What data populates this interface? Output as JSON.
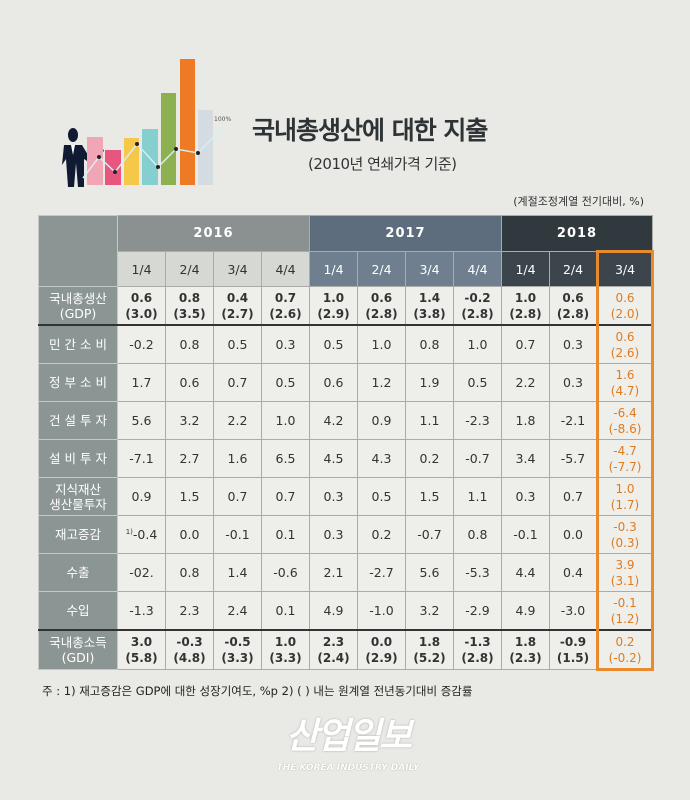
{
  "header": {
    "title": "국내총생산에 대한 지출",
    "subtitle": "(2010년 연쇄가격 기준)",
    "unit": "(계절조정계열 전기대비, %)",
    "illustration_label": "100%"
  },
  "table": {
    "years": [
      {
        "label": "2016",
        "span": 4,
        "bg": "#8b9191",
        "qbg": "#d6d8d4",
        "qcolor": "#333"
      },
      {
        "label": "2017",
        "span": 4,
        "bg": "#5d6d7d",
        "qbg": "#6f7f8f",
        "qcolor": "#fff"
      },
      {
        "label": "2018",
        "span": 3,
        "bg": "#2f393e",
        "qbg": "#3b454b",
        "qcolor": "#fff"
      }
    ],
    "quarters": [
      "1/4",
      "2/4",
      "3/4",
      "4/4",
      "1/4",
      "2/4",
      "3/4",
      "4/4",
      "1/4",
      "2/4",
      "3/4"
    ],
    "rows": [
      {
        "label": [
          "국내총생산",
          "(GDP)"
        ],
        "bold": true,
        "values": [
          [
            "0.6",
            "(3.0)"
          ],
          [
            "0.8",
            "(3.5)"
          ],
          [
            "0.4",
            "(2.7)"
          ],
          [
            "0.7",
            "(2.6)"
          ],
          [
            "1.0",
            "(2.9)"
          ],
          [
            "0.6",
            "(2.8)"
          ],
          [
            "1.4",
            "(3.8)"
          ],
          [
            "-0.2",
            "(2.8)"
          ],
          [
            "1.0",
            "(2.8)"
          ],
          [
            "0.6",
            "(2.8)"
          ],
          [
            "0.6",
            "(2.0)"
          ]
        ]
      },
      {
        "label": [
          "민 간 소 비"
        ],
        "values": [
          [
            "-0.2"
          ],
          [
            "0.8"
          ],
          [
            "0.5"
          ],
          [
            "0.3"
          ],
          [
            "0.5"
          ],
          [
            "1.0"
          ],
          [
            "0.8"
          ],
          [
            "1.0"
          ],
          [
            "0.7"
          ],
          [
            "0.3"
          ],
          [
            "0.6",
            "(2.6)"
          ]
        ]
      },
      {
        "label": [
          "정 부 소 비"
        ],
        "values": [
          [
            "1.7"
          ],
          [
            "0.6"
          ],
          [
            "0.7"
          ],
          [
            "0.5"
          ],
          [
            "0.6"
          ],
          [
            "1.2"
          ],
          [
            "1.9"
          ],
          [
            "0.5"
          ],
          [
            "2.2"
          ],
          [
            "0.3"
          ],
          [
            "1.6",
            "(4.7)"
          ]
        ]
      },
      {
        "label": [
          "건 설 투 자"
        ],
        "values": [
          [
            "5.6"
          ],
          [
            "3.2"
          ],
          [
            "2.2"
          ],
          [
            "1.0"
          ],
          [
            "4.2"
          ],
          [
            "0.9"
          ],
          [
            "1.1"
          ],
          [
            "-2.3"
          ],
          [
            "1.8"
          ],
          [
            "-2.1"
          ],
          [
            "-6.4",
            "(-8.6)"
          ]
        ]
      },
      {
        "label": [
          "설 비 투 자"
        ],
        "values": [
          [
            "-7.1"
          ],
          [
            "2.7"
          ],
          [
            "1.6"
          ],
          [
            "6.5"
          ],
          [
            "4.5"
          ],
          [
            "4.3"
          ],
          [
            "0.2"
          ],
          [
            "-0.7"
          ],
          [
            "3.4"
          ],
          [
            "-5.7"
          ],
          [
            "-4.7",
            "(-7.7)"
          ]
        ]
      },
      {
        "label": [
          "지식재산",
          "생산물투자"
        ],
        "values": [
          [
            "0.9"
          ],
          [
            "1.5"
          ],
          [
            "0.7"
          ],
          [
            "0.7"
          ],
          [
            "0.3"
          ],
          [
            "0.5"
          ],
          [
            "1.5"
          ],
          [
            "1.1"
          ],
          [
            "0.3"
          ],
          [
            "0.7"
          ],
          [
            "1.0",
            "(1.7)"
          ]
        ]
      },
      {
        "label": [
          "재고증감"
        ],
        "note_mark": "1)",
        "values": [
          [
            "-0.4"
          ],
          [
            "0.0"
          ],
          [
            "-0.1"
          ],
          [
            "0.1"
          ],
          [
            "0.3"
          ],
          [
            "0.2"
          ],
          [
            "-0.7"
          ],
          [
            "0.8"
          ],
          [
            "-0.1"
          ],
          [
            "0.0"
          ],
          [
            "-0.3",
            "(0.3)"
          ]
        ]
      },
      {
        "label": [
          "수출"
        ],
        "values": [
          [
            "-02."
          ],
          [
            "0.8"
          ],
          [
            "1.4"
          ],
          [
            "-0.6"
          ],
          [
            "2.1"
          ],
          [
            "-2.7"
          ],
          [
            "5.6"
          ],
          [
            "-5.3"
          ],
          [
            "4.4"
          ],
          [
            "0.4"
          ],
          [
            "3.9",
            "(3.1)"
          ]
        ]
      },
      {
        "label": [
          "수입"
        ],
        "values": [
          [
            "-1.3"
          ],
          [
            "2.3"
          ],
          [
            "2.4"
          ],
          [
            "0.1"
          ],
          [
            "4.9"
          ],
          [
            "-1.0"
          ],
          [
            "3.2"
          ],
          [
            "-2.9"
          ],
          [
            "4.9"
          ],
          [
            "-3.0"
          ],
          [
            "-0.1",
            "(1.2)"
          ]
        ]
      },
      {
        "label": [
          "국내총소득",
          "(GDI)"
        ],
        "bold": true,
        "values": [
          [
            "3.0",
            "(5.8)"
          ],
          [
            "-0.3",
            "(4.8)"
          ],
          [
            "-0.5",
            "(3.3)"
          ],
          [
            "1.0",
            "(3.3)"
          ],
          [
            "2.3",
            "(2.4)"
          ],
          [
            "0.0",
            "(2.9)"
          ],
          [
            "1.8",
            "(5.2)"
          ],
          [
            "-1.3",
            "(2.8)"
          ],
          [
            "1.8",
            "(2.3)"
          ],
          [
            "-0.9",
            "(1.5)"
          ],
          [
            "0.2",
            "(-0.2)"
          ]
        ]
      }
    ]
  },
  "footnote": "주 : 1) 재고증감은 GDP에 대한 성장기여도, %p   2) ( ) 내는 원계열 전년동기대비 증감률",
  "logo": {
    "korean": "산업일보",
    "english": "THE KOREA INDUSTRY DAILY"
  },
  "colors": {
    "highlight": "#e98a2c"
  }
}
